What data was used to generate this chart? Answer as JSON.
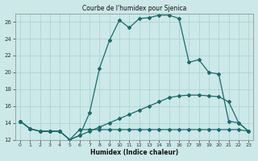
{
  "title": "Courbe de l'humidex pour Sjenica",
  "xlabel": "Humidex (Indice chaleur)",
  "xlim": [
    -0.5,
    23.5
  ],
  "ylim": [
    12,
    27
  ],
  "xticks": [
    0,
    1,
    2,
    3,
    4,
    5,
    6,
    7,
    8,
    9,
    10,
    11,
    12,
    13,
    14,
    15,
    16,
    17,
    18,
    19,
    20,
    21,
    22,
    23
  ],
  "yticks": [
    12,
    14,
    16,
    18,
    20,
    22,
    24,
    26
  ],
  "background_color": "#cce8e8",
  "grid_color": "#a8d0d0",
  "line_color": "#1a6b6b",
  "line1_x": [
    0,
    1,
    2,
    3,
    4,
    5,
    6,
    7,
    8,
    9,
    10,
    11,
    12,
    13,
    14,
    15,
    16,
    17,
    18,
    19,
    20,
    21,
    22,
    23
  ],
  "line1_y": [
    14.2,
    13.3,
    13.0,
    13.0,
    13.0,
    12.0,
    12.5,
    15.2,
    20.5,
    23.8,
    26.2,
    25.3,
    26.4,
    26.5,
    26.8,
    26.8,
    26.4,
    21.2,
    21.5,
    20.0,
    19.8,
    14.2,
    14.0,
    13.0
  ],
  "line2_x": [
    0,
    1,
    2,
    3,
    4,
    5,
    6,
    7,
    8,
    9,
    10,
    11,
    12,
    13,
    14,
    15,
    16,
    17,
    18,
    19,
    20,
    21,
    22,
    23
  ],
  "line2_y": [
    14.2,
    13.3,
    13.0,
    13.0,
    13.0,
    12.0,
    13.2,
    13.2,
    13.2,
    13.2,
    13.2,
    13.2,
    13.2,
    13.2,
    13.2,
    13.2,
    13.2,
    13.2,
    13.2,
    13.2,
    13.2,
    13.2,
    13.2,
    13.0
  ],
  "line3_x": [
    0,
    1,
    2,
    3,
    4,
    5,
    6,
    7,
    8,
    9,
    10,
    11,
    12,
    13,
    14,
    15,
    16,
    17,
    18,
    19,
    20,
    21,
    22,
    23
  ],
  "line3_y": [
    14.2,
    13.3,
    13.0,
    13.0,
    13.0,
    12.0,
    12.5,
    13.0,
    13.5,
    14.0,
    14.5,
    15.0,
    15.5,
    16.0,
    16.5,
    17.0,
    17.2,
    17.3,
    17.3,
    17.2,
    17.1,
    16.5,
    14.0,
    13.0
  ]
}
